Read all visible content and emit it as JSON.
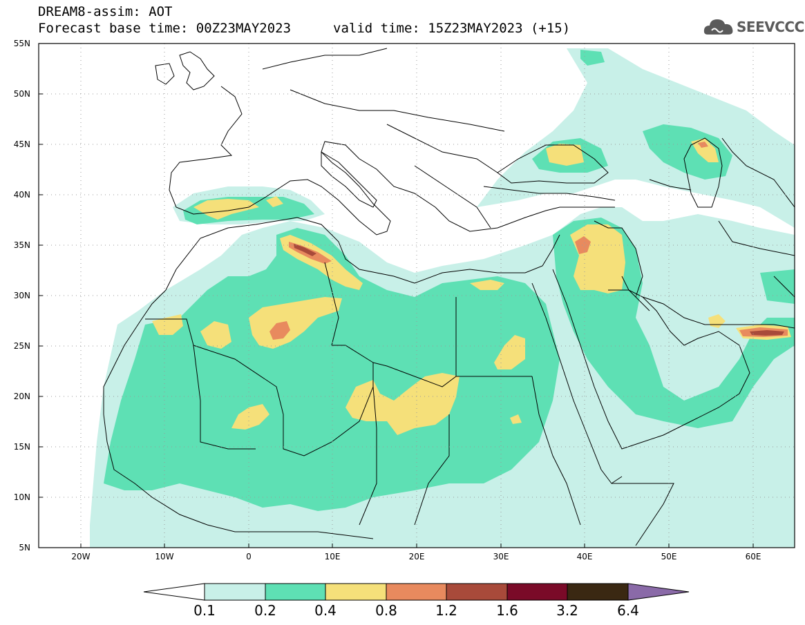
{
  "header": {
    "line1": "DREAM8-assim: AOT",
    "line2": "Forecast base time: 00Z23MAY2023",
    "valid": "valid time: 15Z23MAY2023 (+15)",
    "logo_text": "SEEVCCC"
  },
  "axes": {
    "lat_labels": [
      "55N",
      "50N",
      "45N",
      "40N",
      "35N",
      "30N",
      "25N",
      "20N",
      "15N",
      "10N",
      "5N"
    ],
    "lon_labels": [
      "20W",
      "10W",
      "0",
      "10E",
      "20E",
      "30E",
      "40E",
      "50E",
      "60E"
    ]
  },
  "colorbar": {
    "labels": [
      "0.1",
      "0.2",
      "0.4",
      "0.8",
      "1.2",
      "1.6",
      "3.2",
      "6.4"
    ],
    "colors": [
      "#c8f0e8",
      "#5ee0b4",
      "#f5e07a",
      "#e88a5e",
      "#a84a3a",
      "#7a0a28",
      "#3a2812",
      "#8a6aa8"
    ]
  },
  "palette": {
    "aot_0_1": "#c8f0e8",
    "aot_0_2": "#5ee0b4",
    "aot_0_4": "#f5e07a",
    "aot_0_8": "#e88a5e",
    "aot_1_2": "#a84a3a"
  }
}
